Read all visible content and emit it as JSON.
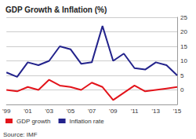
{
  "chart_data": {
    "type": "line",
    "title": "GDP Growth & Inflation (%)",
    "annotations": [
      "Source: IMF"
    ],
    "categories": [
      "'99",
      null,
      "'01",
      null,
      "'03",
      null,
      "'05",
      null,
      "'07",
      null,
      "'09",
      null,
      "'11",
      null,
      "'13",
      null,
      "'15"
    ],
    "series": [
      {
        "name": "GDP growth",
        "color": "#e3141b",
        "values": [
          0,
          -0.5,
          1,
          0,
          3.5,
          1.5,
          1,
          0,
          2.5,
          1,
          -3.5,
          -1,
          1.5,
          -0.5,
          0,
          0.5,
          1
        ]
      },
      {
        "name": "Inflation rate",
        "color": "#23238c",
        "values": [
          6,
          4.5,
          9.5,
          8.5,
          10,
          15,
          14,
          9,
          9.5,
          22,
          10,
          12.5,
          7.5,
          7,
          9.5,
          8.5,
          5
        ]
      }
    ],
    "ylim": [
      -5,
      25
    ],
    "yticks": [
      0,
      5,
      10,
      15,
      20,
      25
    ],
    "grid": true,
    "legend": "bottom"
  }
}
